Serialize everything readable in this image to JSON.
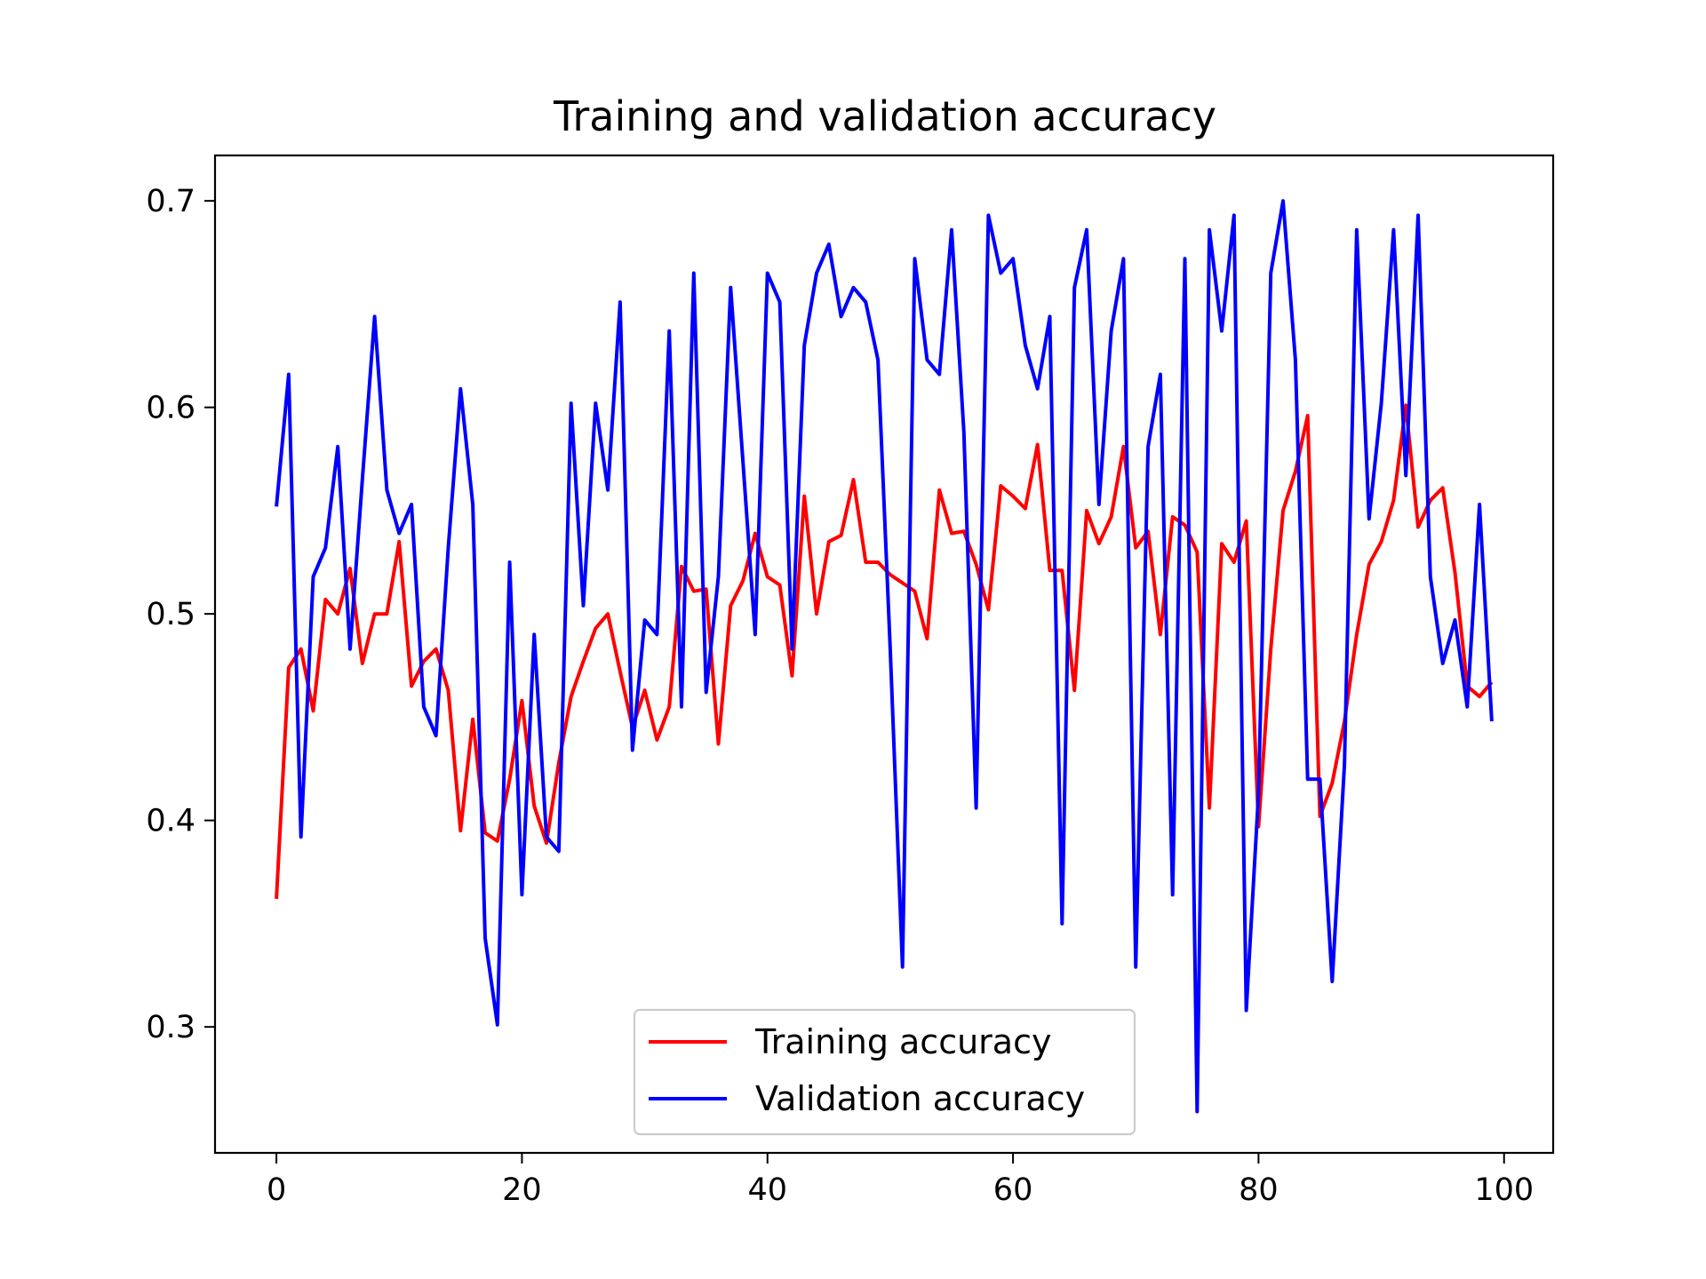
{
  "chart_data": {
    "type": "line",
    "title": "Training and validation accuracy",
    "xlabel": "",
    "ylabel": "",
    "xlim": [
      -5,
      104
    ],
    "ylim": [
      0.239,
      0.722
    ],
    "xticks": [
      0,
      20,
      40,
      60,
      80,
      100
    ],
    "yticks": [
      0.3,
      0.4,
      0.5,
      0.6,
      0.7
    ],
    "grid": false,
    "legend": {
      "placement": "lower-center"
    },
    "series": [
      {
        "name": "Training accuracy",
        "color": "#ff0000",
        "x": [
          0,
          1,
          2,
          3,
          4,
          5,
          6,
          7,
          8,
          9,
          10,
          11,
          12,
          13,
          14,
          15,
          16,
          17,
          18,
          19,
          20,
          21,
          22,
          23,
          24,
          25,
          26,
          27,
          28,
          29,
          30,
          31,
          32,
          33,
          34,
          35,
          36,
          37,
          38,
          39,
          40,
          41,
          42,
          43,
          44,
          45,
          46,
          47,
          48,
          49,
          50,
          51,
          52,
          53,
          54,
          55,
          56,
          57,
          58,
          59,
          60,
          61,
          62,
          63,
          64,
          65,
          66,
          67,
          68,
          69,
          70,
          71,
          72,
          73,
          74,
          75,
          76,
          77,
          78,
          79,
          80,
          81,
          82,
          83,
          84,
          85,
          86,
          87,
          88,
          89,
          90,
          91,
          92,
          93,
          94,
          95,
          96,
          97,
          98,
          99
        ],
        "values": [
          0.362,
          0.474,
          0.483,
          0.453,
          0.507,
          0.5,
          0.522,
          0.476,
          0.5,
          0.5,
          0.535,
          0.465,
          0.477,
          0.483,
          0.463,
          0.395,
          0.449,
          0.394,
          0.39,
          0.42,
          0.458,
          0.407,
          0.389,
          0.428,
          0.46,
          0.477,
          0.493,
          0.5,
          0.472,
          0.445,
          0.463,
          0.439,
          0.455,
          0.523,
          0.511,
          0.512,
          0.437,
          0.504,
          0.516,
          0.539,
          0.518,
          0.514,
          0.47,
          0.557,
          0.5,
          0.535,
          0.538,
          0.565,
          0.525,
          0.525,
          0.519,
          0.515,
          0.511,
          0.488,
          0.56,
          0.539,
          0.54,
          0.524,
          0.502,
          0.562,
          0.557,
          0.551,
          0.582,
          0.521,
          0.521,
          0.463,
          0.55,
          0.534,
          0.547,
          0.581,
          0.532,
          0.54,
          0.49,
          0.547,
          0.543,
          0.53,
          0.406,
          0.534,
          0.525,
          0.545,
          0.397,
          0.483,
          0.55,
          0.569,
          0.596,
          0.402,
          0.418,
          0.448,
          0.49,
          0.524,
          0.535,
          0.555,
          0.601,
          0.542,
          0.555,
          0.561,
          0.52,
          0.465,
          0.46,
          0.467
        ]
      },
      {
        "name": "Validation accuracy",
        "color": "#0000ff",
        "x": [
          0,
          1,
          2,
          3,
          4,
          5,
          6,
          7,
          8,
          9,
          10,
          11,
          12,
          13,
          14,
          15,
          16,
          17,
          18,
          19,
          20,
          21,
          22,
          23,
          24,
          25,
          26,
          27,
          28,
          29,
          30,
          31,
          32,
          33,
          34,
          35,
          36,
          37,
          38,
          39,
          40,
          41,
          42,
          43,
          44,
          45,
          46,
          47,
          48,
          49,
          50,
          51,
          52,
          53,
          54,
          55,
          56,
          57,
          58,
          59,
          60,
          61,
          62,
          63,
          64,
          65,
          66,
          67,
          68,
          69,
          70,
          71,
          72,
          73,
          74,
          75,
          76,
          77,
          78,
          79,
          80,
          81,
          82,
          83,
          84,
          85,
          86,
          87,
          88,
          89,
          90,
          91,
          92,
          93,
          94,
          95,
          96,
          97,
          98,
          99
        ],
        "values": [
          0.552,
          0.616,
          0.392,
          0.518,
          0.532,
          0.581,
          0.483,
          0.565,
          0.644,
          0.56,
          0.539,
          0.553,
          0.455,
          0.441,
          0.532,
          0.609,
          0.553,
          0.343,
          0.301,
          0.525,
          0.364,
          0.49,
          0.392,
          0.385,
          0.602,
          0.504,
          0.602,
          0.56,
          0.651,
          0.434,
          0.497,
          0.49,
          0.637,
          0.455,
          0.665,
          0.462,
          0.518,
          0.658,
          0.574,
          0.49,
          0.665,
          0.651,
          0.483,
          0.63,
          0.665,
          0.679,
          0.644,
          0.658,
          0.651,
          0.623,
          0.483,
          0.329,
          0.672,
          0.623,
          0.616,
          0.686,
          0.588,
          0.406,
          0.693,
          0.665,
          0.672,
          0.63,
          0.609,
          0.644,
          0.35,
          0.658,
          0.686,
          0.553,
          0.637,
          0.672,
          0.329,
          0.581,
          0.616,
          0.364,
          0.672,
          0.259,
          0.686,
          0.637,
          0.693,
          0.308,
          0.413,
          0.665,
          0.7,
          0.623,
          0.42,
          0.42,
          0.322,
          0.427,
          0.686,
          0.546,
          0.602,
          0.686,
          0.567,
          0.693,
          0.518,
          0.476,
          0.497,
          0.455,
          0.553,
          0.448
        ]
      }
    ]
  }
}
